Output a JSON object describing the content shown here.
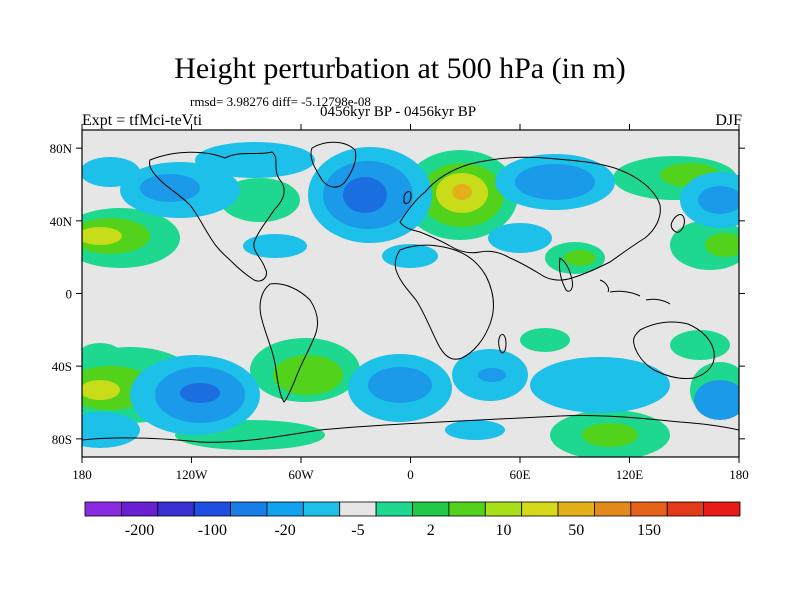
{
  "title": "Height perturbation at 500 hPa (in m)",
  "stats": "rmsd= 3.98276 diff= -5.12798e-08",
  "period": "0456kyr BP - 0456kyr BP",
  "experiment": "Expt = tfMci-teVti",
  "season": "DJF",
  "axes": {
    "lon_labels": [
      "180",
      "120W",
      "60W",
      "0",
      "60E",
      "120E",
      "180"
    ],
    "lat_labels": [
      "80N",
      "40N",
      "0",
      "40S",
      "80S"
    ]
  },
  "colorbar": {
    "labels": [
      "-200",
      "-100",
      "-20",
      "-5",
      "2",
      "10",
      "50",
      "150"
    ],
    "colors": [
      "#8a2be2",
      "#6a1fd0",
      "#3a2fd0",
      "#1e4fe0",
      "#1a7ee8",
      "#12a2f0",
      "#1cc0e8",
      "#e6e6e6",
      "#1fd890",
      "#22c84a",
      "#52d21a",
      "#a8e01a",
      "#d6d81a",
      "#e4b01a",
      "#e48a1a",
      "#e4621a",
      "#e43a1a",
      "#e81a1a"
    ]
  },
  "palette": {
    "background": "#e6e6e6",
    "levels": {
      "n_lt_minus50": "#1a6ee0",
      "n_minus20_to_minus5": "#1a9ae8",
      "n_minus5_to_0": "#1cc0e8",
      "p_2_to_10": "#1fd890",
      "p_10_to_20": "#52d21a",
      "p_20_to_50": "#c8dc1a",
      "p_gt_50": "#e4b01a"
    }
  }
}
